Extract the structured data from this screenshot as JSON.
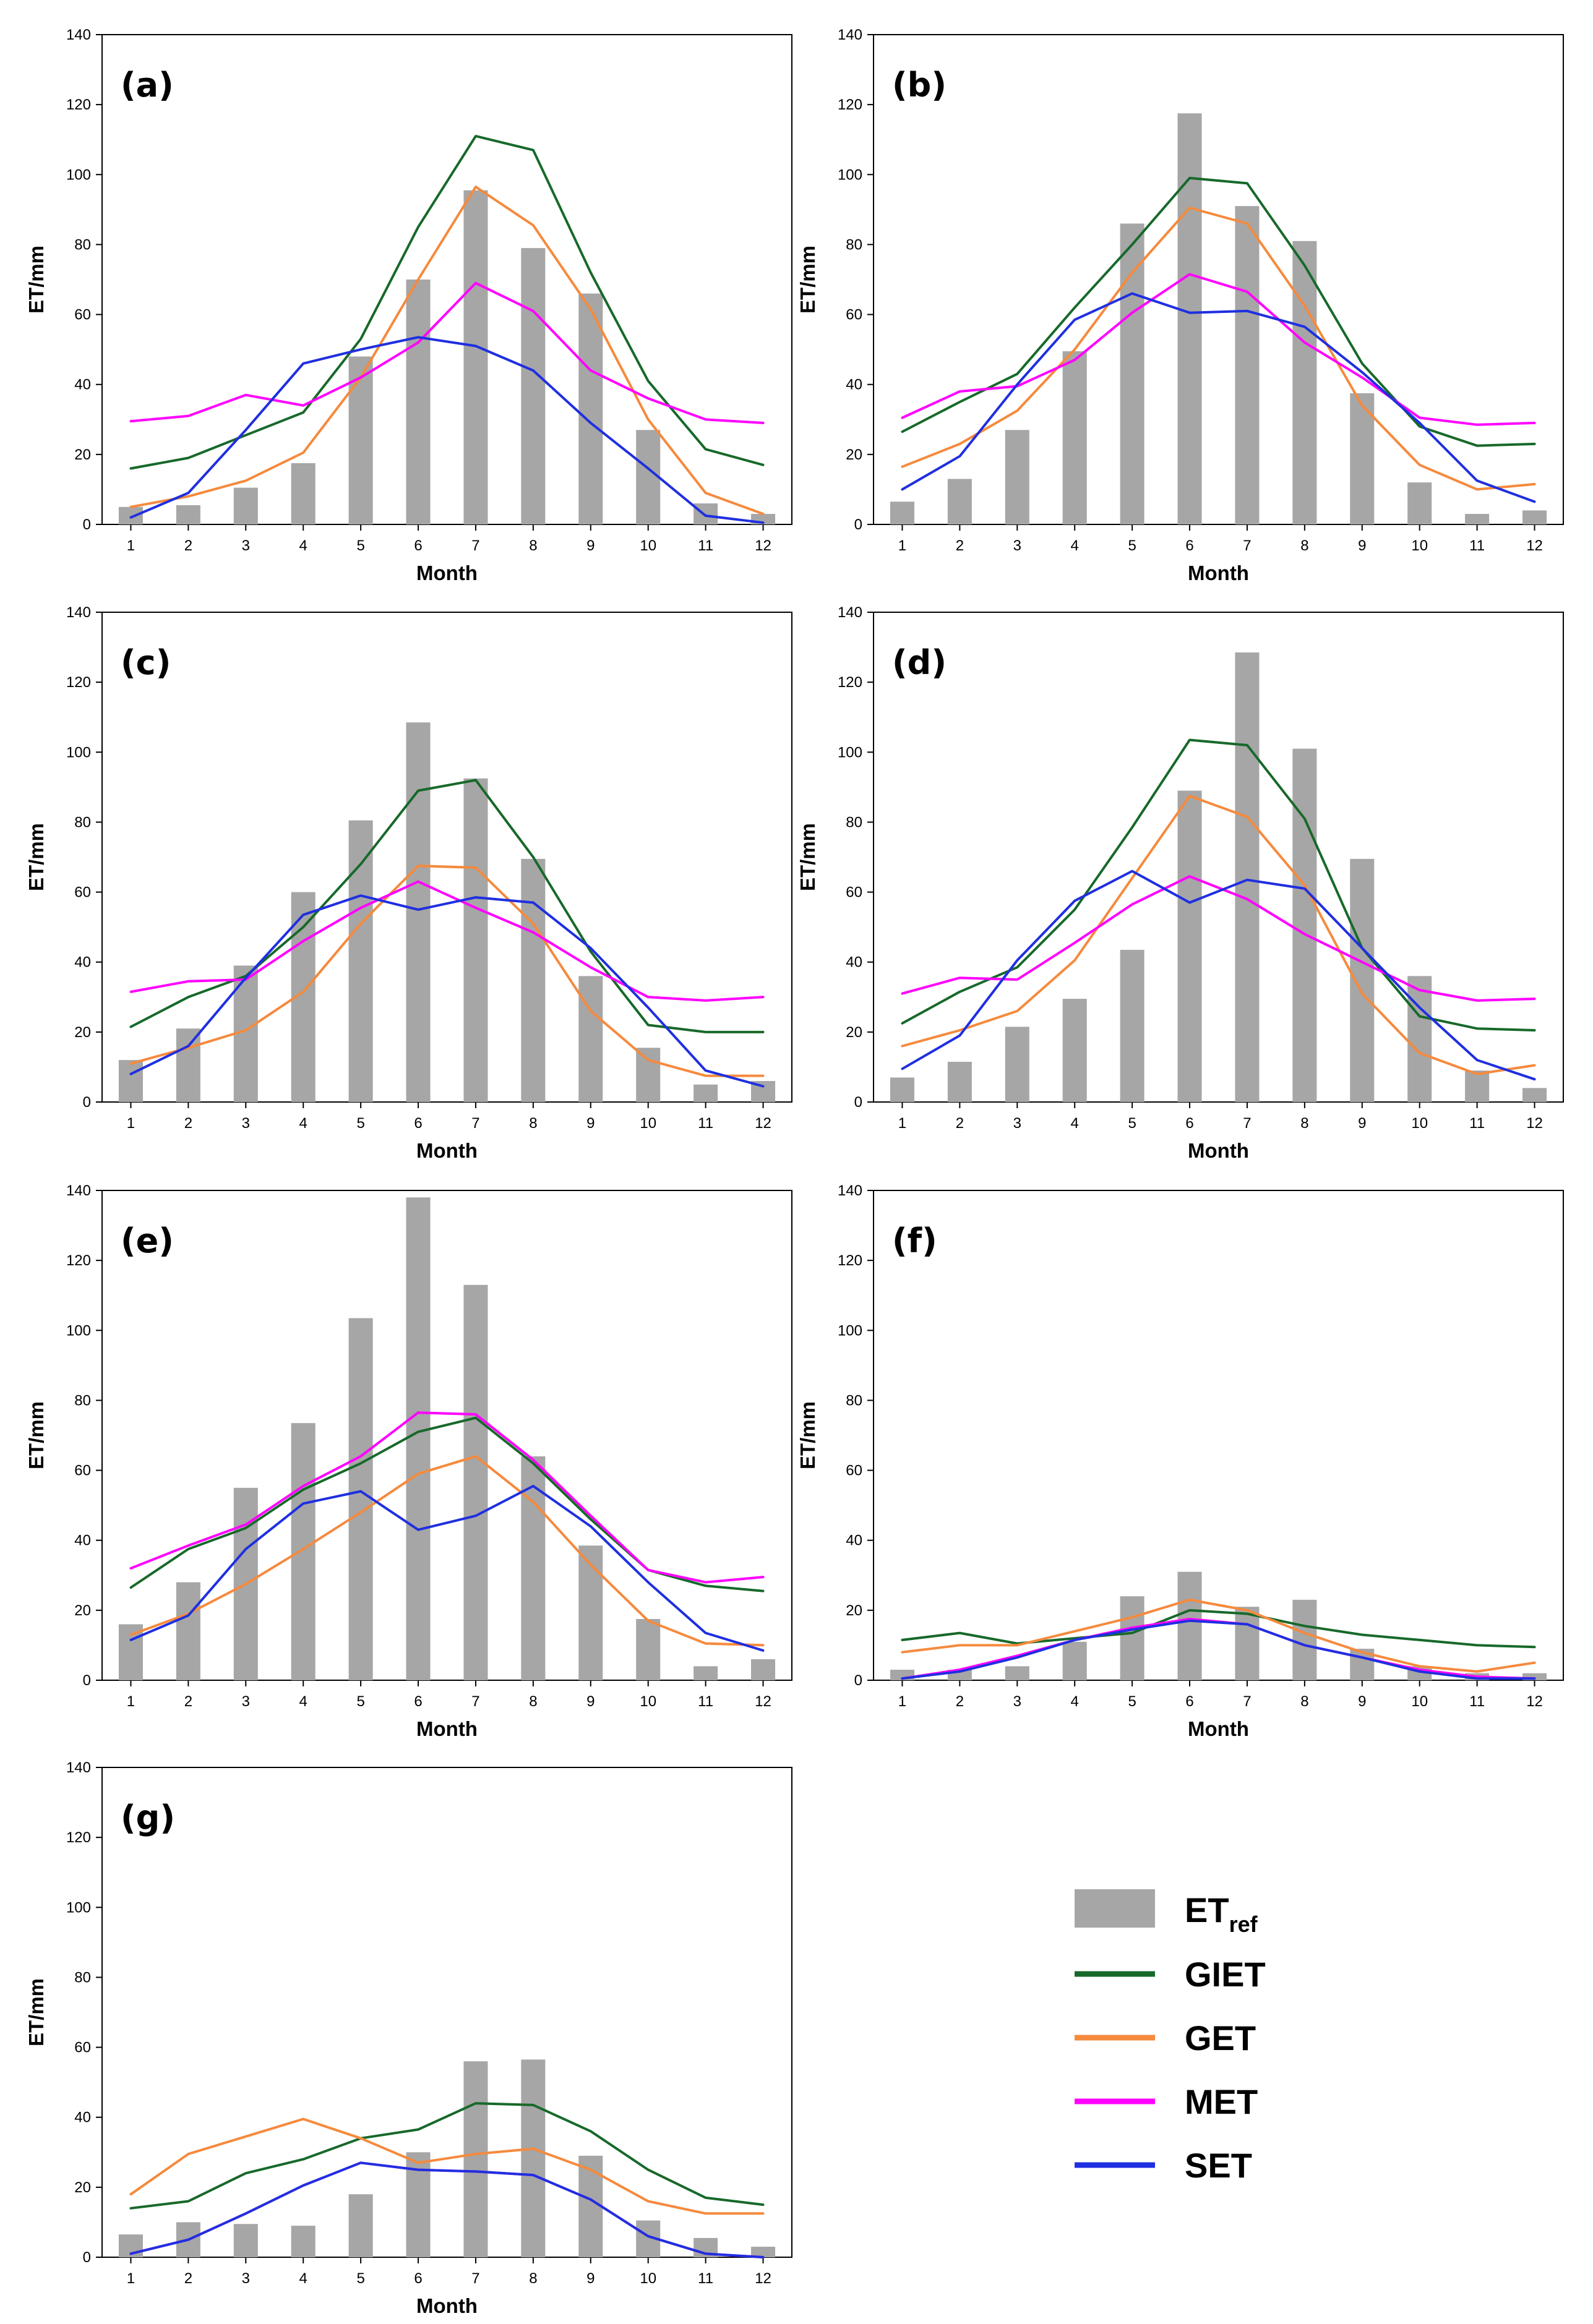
{
  "figure": {
    "legend": [
      {
        "key": "ETref",
        "label_main": "ET",
        "label_sub": "ref",
        "color": "#a6a6a6",
        "kind": "bar"
      },
      {
        "key": "GIET",
        "label_main": "GIET",
        "color": "#17692a",
        "kind": "line"
      },
      {
        "key": "GET",
        "label_main": "GET",
        "color": "#f58a3d",
        "kind": "line"
      },
      {
        "key": "MET",
        "label_main": "MET",
        "color": "#ff00ff",
        "kind": "line"
      },
      {
        "key": "SET",
        "label_main": "SET",
        "color": "#1f2fe0",
        "kind": "line"
      }
    ]
  },
  "chart_data": [
    {
      "panel": "(a)",
      "type": "bar+line",
      "xlabel": "Month",
      "ylabel": "ET/mm",
      "categories": [
        "1",
        "2",
        "3",
        "4",
        "5",
        "6",
        "7",
        "8",
        "9",
        "10",
        "11",
        "12"
      ],
      "ylim": [
        0,
        140
      ],
      "yticks": [
        "0",
        "20",
        "40",
        "60",
        "80",
        "100",
        "120",
        "140"
      ],
      "bars": {
        "name": "ETref",
        "values": [
          5,
          5.5,
          10.5,
          17.5,
          48,
          70,
          95.5,
          79,
          66,
          27,
          6,
          3
        ]
      },
      "series": [
        {
          "name": "GIET",
          "values": [
            16,
            19,
            25.5,
            32,
            53,
            85,
            111,
            107,
            72,
            41,
            21.5,
            17
          ]
        },
        {
          "name": "GET",
          "values": [
            5,
            8,
            12.5,
            20.5,
            42,
            70,
            96.5,
            85.5,
            61.5,
            30,
            9,
            3
          ]
        },
        {
          "name": "MET",
          "values": [
            29.5,
            31,
            37,
            34,
            42,
            52,
            69,
            61,
            44,
            36,
            30,
            29
          ]
        },
        {
          "name": "SET",
          "values": [
            2,
            9,
            27,
            46,
            50,
            53.5,
            51,
            44,
            29,
            16,
            2.5,
            0.5
          ]
        }
      ]
    },
    {
      "panel": "(b)",
      "type": "bar+line",
      "xlabel": "Month",
      "ylabel": "ET/mm",
      "categories": [
        "1",
        "2",
        "3",
        "4",
        "5",
        "6",
        "7",
        "8",
        "9",
        "10",
        "11",
        "12"
      ],
      "ylim": [
        0,
        140
      ],
      "yticks": [
        "0",
        "20",
        "40",
        "60",
        "80",
        "100",
        "120",
        "140"
      ],
      "bars": {
        "name": "ETref",
        "values": [
          6.5,
          13,
          27,
          49.5,
          86,
          117.5,
          91,
          81,
          37.5,
          12,
          3,
          4
        ]
      },
      "series": [
        {
          "name": "GIET",
          "values": [
            26.5,
            35,
            43,
            62,
            80,
            99,
            97.5,
            74,
            46,
            28,
            22.5,
            23
          ]
        },
        {
          "name": "GET",
          "values": [
            16.5,
            23,
            32.5,
            50,
            72,
            90.5,
            86,
            62.5,
            34,
            17,
            10,
            11.5
          ]
        },
        {
          "name": "MET",
          "values": [
            30.5,
            38,
            39.5,
            47,
            60.5,
            71.5,
            66.5,
            52,
            42,
            30.5,
            28.5,
            29
          ]
        },
        {
          "name": "SET",
          "values": [
            10,
            19.5,
            40,
            58.5,
            66,
            60.5,
            61,
            56.5,
            43.5,
            29,
            12.5,
            6.5
          ]
        }
      ]
    },
    {
      "panel": "(c)",
      "type": "bar+line",
      "xlabel": "Month",
      "ylabel": "ET/mm",
      "categories": [
        "1",
        "2",
        "3",
        "4",
        "5",
        "6",
        "7",
        "8",
        "9",
        "10",
        "11",
        "12"
      ],
      "ylim": [
        0,
        140
      ],
      "yticks": [
        "0",
        "20",
        "40",
        "60",
        "80",
        "100",
        "120",
        "140"
      ],
      "bars": {
        "name": "ETref",
        "values": [
          12,
          21,
          39,
          60,
          80.5,
          108.5,
          92.5,
          69.5,
          36,
          15.5,
          5,
          6
        ]
      },
      "series": [
        {
          "name": "GIET",
          "values": [
            21.5,
            30,
            36,
            50,
            68,
            89,
            92,
            70,
            43,
            22,
            20,
            20
          ]
        },
        {
          "name": "GET",
          "values": [
            11,
            15.5,
            20.5,
            31.5,
            51,
            67.5,
            67,
            51,
            26,
            12,
            7.5,
            7.5
          ]
        },
        {
          "name": "MET",
          "values": [
            31.5,
            34.5,
            35,
            46,
            55.5,
            63,
            55.5,
            48.5,
            38.5,
            30,
            29,
            30
          ]
        },
        {
          "name": "SET",
          "values": [
            8,
            16,
            35.5,
            53.5,
            59,
            55,
            58.5,
            57,
            44,
            27,
            9,
            4.5
          ]
        }
      ]
    },
    {
      "panel": "(d)",
      "type": "bar+line",
      "xlabel": "Month",
      "ylabel": "ET/mm",
      "categories": [
        "1",
        "2",
        "3",
        "4",
        "5",
        "6",
        "7",
        "8",
        "9",
        "10",
        "11",
        "12"
      ],
      "ylim": [
        0,
        140
      ],
      "yticks": [
        "0",
        "20",
        "40",
        "60",
        "80",
        "100",
        "120",
        "140"
      ],
      "bars": {
        "name": "ETref",
        "values": [
          7,
          11.5,
          21.5,
          29.5,
          43.5,
          89,
          128.5,
          101,
          69.5,
          36,
          9,
          4
        ]
      },
      "series": [
        {
          "name": "GIET",
          "values": [
            22.5,
            31.5,
            38.5,
            55,
            78.5,
            103.5,
            102,
            81,
            44,
            24.5,
            21,
            20.5
          ]
        },
        {
          "name": "GET",
          "values": [
            16,
            20.5,
            26,
            40.5,
            64,
            87.5,
            81.5,
            62,
            31,
            14,
            8,
            10.5
          ]
        },
        {
          "name": "MET",
          "values": [
            31,
            35.5,
            35,
            45.5,
            56.5,
            64.5,
            58,
            48,
            40,
            32,
            29,
            29.5
          ]
        },
        {
          "name": "SET",
          "values": [
            9.5,
            19,
            40.5,
            57.5,
            66,
            57,
            63.5,
            61,
            44,
            27,
            12,
            6.5
          ]
        }
      ]
    },
    {
      "panel": "(e)",
      "type": "bar+line",
      "xlabel": "Month",
      "ylabel": "ET/mm",
      "categories": [
        "1",
        "2",
        "3",
        "4",
        "5",
        "6",
        "7",
        "8",
        "9",
        "10",
        "11",
        "12"
      ],
      "ylim": [
        0,
        140
      ],
      "yticks": [
        "0",
        "20",
        "40",
        "60",
        "80",
        "100",
        "120",
        "140"
      ],
      "bars": {
        "name": "ETref",
        "values": [
          16,
          28,
          55,
          73.5,
          103.5,
          138,
          113,
          64,
          38.5,
          17.5,
          4,
          6
        ]
      },
      "series": [
        {
          "name": "GIET",
          "values": [
            26.5,
            37.5,
            43.5,
            54.5,
            62,
            71,
            75,
            62,
            46,
            31.5,
            27,
            25.5
          ]
        },
        {
          "name": "GET",
          "values": [
            13,
            19,
            27.5,
            37.5,
            48,
            59,
            64,
            51,
            33,
            17,
            10.5,
            10
          ]
        },
        {
          "name": "MET",
          "values": [
            32,
            38.5,
            44.5,
            55.5,
            64,
            76.5,
            76,
            63,
            47,
            31.5,
            28,
            29.5
          ]
        },
        {
          "name": "SET",
          "values": [
            11.5,
            18.5,
            37.5,
            50.5,
            54,
            43,
            47,
            55.5,
            44,
            28,
            13.5,
            8.5
          ]
        }
      ]
    },
    {
      "panel": "(f)",
      "type": "bar+line",
      "xlabel": "Month",
      "ylabel": "ET/mm",
      "categories": [
        "1",
        "2",
        "3",
        "4",
        "5",
        "6",
        "7",
        "8",
        "9",
        "10",
        "11",
        "12"
      ],
      "ylim": [
        0,
        140
      ],
      "yticks": [
        "0",
        "20",
        "40",
        "60",
        "80",
        "100",
        "120",
        "140"
      ],
      "bars": {
        "name": "ETref",
        "values": [
          3,
          3,
          4,
          11,
          24,
          31,
          21,
          23,
          9,
          4,
          2,
          2
        ]
      },
      "series": [
        {
          "name": "GIET",
          "values": [
            11.5,
            13.5,
            10.5,
            12,
            13.5,
            20,
            19,
            15.5,
            13,
            11.5,
            10,
            9.5
          ]
        },
        {
          "name": "GET",
          "values": [
            8,
            10,
            10,
            14,
            18,
            23,
            20,
            13.5,
            8,
            4,
            2.5,
            5
          ]
        },
        {
          "name": "MET",
          "values": [
            0.5,
            3,
            7,
            11.5,
            15,
            17.5,
            16,
            10,
            6.5,
            3,
            1,
            0.5
          ]
        },
        {
          "name": "SET",
          "values": [
            0.5,
            2.5,
            6.5,
            11.5,
            14.5,
            17,
            16,
            10,
            6.5,
            2.5,
            0.5,
            0.5
          ]
        }
      ]
    },
    {
      "panel": "(g)",
      "type": "bar+line",
      "xlabel": "Month",
      "ylabel": "ET/mm",
      "categories": [
        "1",
        "2",
        "3",
        "4",
        "5",
        "6",
        "7",
        "8",
        "9",
        "10",
        "11",
        "12"
      ],
      "ylim": [
        0,
        140
      ],
      "yticks": [
        "0",
        "20",
        "40",
        "60",
        "80",
        "100",
        "120",
        "140"
      ],
      "bars": {
        "name": "ETref",
        "values": [
          6.5,
          10,
          9.5,
          9,
          18,
          30,
          56,
          56.5,
          29,
          10.5,
          5.5,
          3
        ]
      },
      "series": [
        {
          "name": "GIET",
          "values": [
            14,
            16,
            24,
            28,
            34,
            36.5,
            44,
            43.5,
            36,
            25,
            17,
            15
          ]
        },
        {
          "name": "GET",
          "values": [
            18,
            29.5,
            34.5,
            39.5,
            34,
            27,
            29.5,
            31,
            25,
            16,
            12.5,
            12.5
          ]
        },
        {
          "name": "MET",
          "values": [
            1,
            5,
            12.5,
            20.5,
            27,
            25,
            24.5,
            23.5,
            16.5,
            6,
            1,
            0
          ]
        },
        {
          "name": "SET",
          "values": [
            1,
            5,
            12.5,
            20.5,
            27,
            25,
            24.5,
            23.5,
            16.5,
            6,
            1,
            0
          ]
        }
      ]
    }
  ]
}
